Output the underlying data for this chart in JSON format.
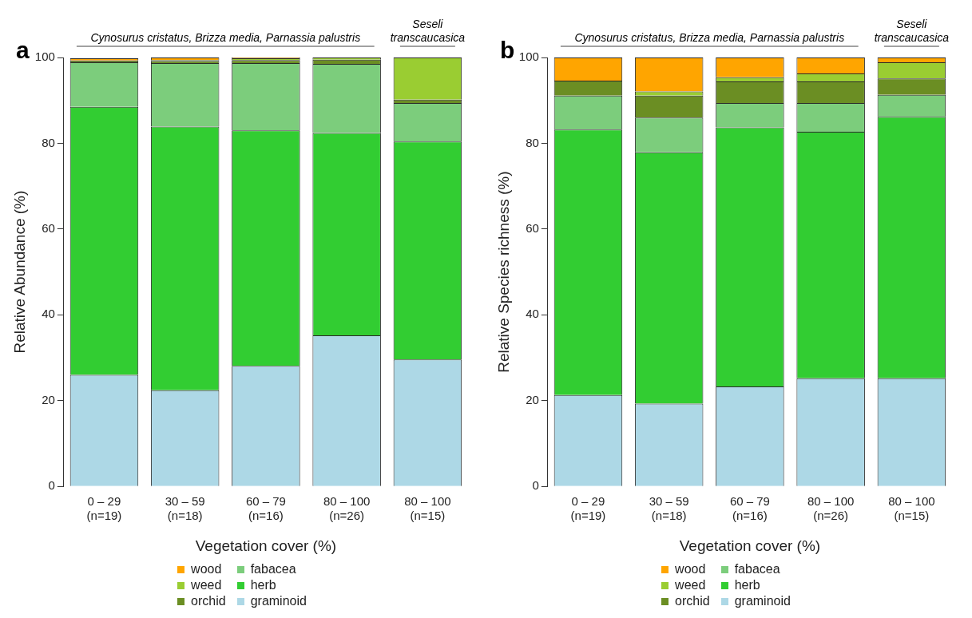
{
  "chart_data": [
    {
      "type": "bar",
      "title": "a",
      "ylabel": "Relative Abundance (%)",
      "xlabel": "Vegetation cover (%)",
      "categories": [
        "0 – 29\n(n=19)",
        "30 – 59\n(n=18)",
        "60 – 79\n(n=16)",
        "80 – 100\n(n=26)",
        "80 – 100\n(n=15)"
      ],
      "stacked": true,
      "ylim": [
        0,
        100
      ],
      "yticks": [
        0,
        20,
        40,
        60,
        80,
        100
      ],
      "grid": false,
      "legend": "bottom",
      "annotations": [
        "Cynosurus cristatus, Brizza media, Parnassia palustris",
        "Seseli transcaucasica"
      ],
      "series": [
        {
          "name": "graminoid",
          "color": "#add8e6",
          "values": [
            26.0,
            22.4,
            28.1,
            35.2,
            29.6
          ]
        },
        {
          "name": "herb",
          "color": "#32cd32",
          "values": [
            62.5,
            61.5,
            54.9,
            47.2,
            50.8
          ]
        },
        {
          "name": "fabacea",
          "color": "#7ccd7c",
          "values": [
            10.4,
            14.8,
            15.7,
            16.1,
            9.0
          ]
        },
        {
          "name": "orchid",
          "color": "#6b8e23",
          "values": [
            0.4,
            0.5,
            0.7,
            1.0,
            0.8
          ]
        },
        {
          "name": "weed",
          "color": "#9acd32",
          "values": [
            null,
            0.2,
            0.4,
            0.5,
            9.8
          ]
        },
        {
          "name": "wood",
          "color": "#ffa500",
          "values": [
            0.5,
            0.6,
            0.2,
            0.0,
            0.0
          ]
        }
      ]
    },
    {
      "type": "bar",
      "title": "b",
      "ylabel": "Relative Species richness (%)",
      "xlabel": "Vegetation cover (%)",
      "categories": [
        "0 – 29\n(n=19)",
        "30 – 59\n(n=18)",
        "60 – 79\n(n=16)",
        "80 – 100\n(n=26)",
        "80 – 100\n(n=15)"
      ],
      "stacked": true,
      "ylim": [
        0,
        100
      ],
      "yticks": [
        0,
        20,
        40,
        60,
        80,
        100
      ],
      "grid": false,
      "legend": "bottom",
      "annotations": [
        "Cynosurus cristatus, Brizza media, Parnassia palustris",
        "Seseli transcaucasica"
      ],
      "series": [
        {
          "name": "graminoid",
          "color": "#add8e6",
          "values": [
            21.3,
            19.3,
            23.3,
            25.2,
            25.2
          ]
        },
        {
          "name": "herb",
          "color": "#32cd32",
          "values": [
            61.9,
            58.6,
            60.4,
            57.5,
            61.0
          ]
        },
        {
          "name": "fabacea",
          "color": "#7ccd7c",
          "values": [
            7.9,
            8.1,
            5.7,
            6.7,
            5.1
          ]
        },
        {
          "name": "orchid",
          "color": "#6b8e23",
          "values": [
            3.5,
            5.1,
            5.0,
            5.0,
            3.8
          ]
        },
        {
          "name": "weed",
          "color": "#9acd32",
          "values": [
            0.0,
            1.0,
            1.0,
            1.9,
            3.8
          ]
        },
        {
          "name": "wood",
          "color": "#ffa500",
          "values": [
            5.4,
            7.9,
            4.6,
            3.7,
            1.1
          ]
        }
      ]
    }
  ]
}
